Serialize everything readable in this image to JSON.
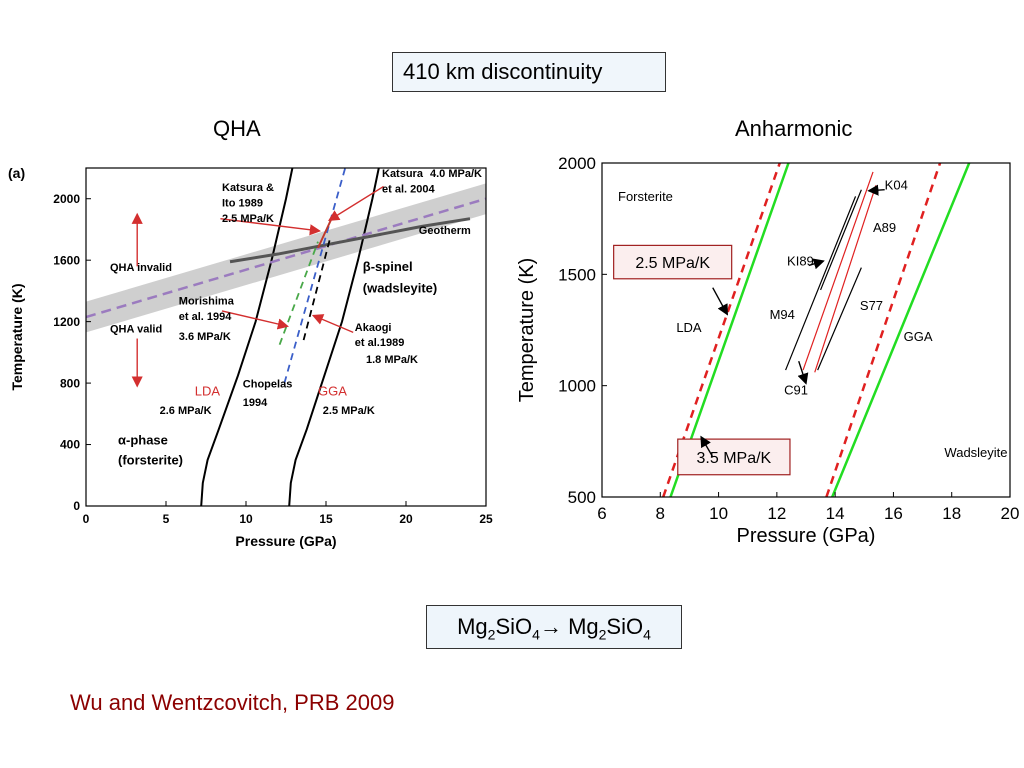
{
  "header": {
    "title": "410 km discontinuity"
  },
  "formula": {
    "reactant": "Mg",
    "r_sub1": "2",
    "r_mid": "SiO",
    "r_sub2": "4",
    "arrow": "→",
    "product": "Mg",
    "p_sub1": "2",
    "p_mid": "SiO",
    "p_sub2": "4"
  },
  "citation": "Wu and Wentzcovitch, PRB 2009",
  "chart_data": [
    {
      "type": "line",
      "panel_title": "QHA",
      "panel_label": "(a)",
      "xlabel": "Pressure (GPa)",
      "ylabel": "Temperature (K)",
      "xlim": [
        0,
        25
      ],
      "ylim": [
        0,
        2200
      ],
      "xticks": [
        0,
        5,
        10,
        15,
        20,
        25
      ],
      "yticks": [
        0,
        400,
        800,
        1200,
        1600,
        2000
      ],
      "series": [
        {
          "key": "lda",
          "color": "#000000",
          "width": 2,
          "dash": "",
          "points": [
            [
              7.2,
              0
            ],
            [
              7.3,
              150
            ],
            [
              7.6,
              300
            ],
            [
              8.3,
              500
            ],
            [
              9.5,
              850
            ],
            [
              10.6,
              1200
            ],
            [
              11.6,
              1600
            ],
            [
              12.5,
              2000
            ],
            [
              12.9,
              2200
            ]
          ]
        },
        {
          "key": "gga",
          "color": "#000000",
          "width": 2,
          "dash": "",
          "points": [
            [
              12.7,
              0
            ],
            [
              12.8,
              150
            ],
            [
              13.1,
              300
            ],
            [
              13.8,
              500
            ],
            [
              14.9,
              850
            ],
            [
              16.0,
              1200
            ],
            [
              17.0,
              1600
            ],
            [
              17.9,
              2000
            ],
            [
              18.3,
              2200
            ]
          ]
        },
        {
          "key": "qha-boundary",
          "color": "#9b7bbf",
          "width": 2.5,
          "dash": "10,6",
          "points": [
            [
              0,
              1230
            ],
            [
              25,
              2000
            ]
          ]
        },
        {
          "key": "geotherm",
          "color": "#555555",
          "width": 3,
          "dash": "",
          "points": [
            [
              9,
              1590
            ],
            [
              12,
              1640
            ],
            [
              15,
              1700
            ],
            [
              18,
              1760
            ],
            [
              21,
              1820
            ],
            [
              24,
              1870
            ]
          ]
        },
        {
          "key": "chopelas",
          "color": "#3b5fc9",
          "width": 1.8,
          "dash": "7,5",
          "points": [
            [
              12.4,
              800
            ],
            [
              16.2,
              2200
            ]
          ]
        },
        {
          "key": "morishima",
          "color": "#49a849",
          "width": 1.8,
          "dash": "7,5",
          "points": [
            [
              12.1,
              1050
            ],
            [
              14.5,
              1720
            ]
          ]
        },
        {
          "key": "akaogi",
          "color": "#000000",
          "width": 1.8,
          "dash": "7,5",
          "points": [
            [
              13.6,
              1080
            ],
            [
              15.3,
              1760
            ]
          ]
        },
        {
          "key": "katsura-2004",
          "color": "#c0392b",
          "width": 2,
          "dash": "",
          "points": [
            [
              14.5,
              1680
            ],
            [
              15.3,
              1860
            ]
          ]
        }
      ],
      "band": {
        "lower": [
          [
            0,
            1130
          ],
          [
            25,
            1900
          ]
        ],
        "upper": [
          [
            0,
            1330
          ],
          [
            25,
            2100
          ]
        ],
        "color": "#cfcfcf"
      },
      "annotations": [
        {
          "text": "Katsura &",
          "bold": true,
          "x": 8.5,
          "y": 2050,
          "size": 11
        },
        {
          "text": "Ito 1989",
          "bold": true,
          "x": 8.5,
          "y": 1950,
          "size": 11
        },
        {
          "text": "2.5 MPa/K",
          "bold": true,
          "x": 8.5,
          "y": 1850,
          "size": 11
        },
        {
          "text": "Katsura",
          "bold": true,
          "x": 18.5,
          "y": 2140,
          "size": 11
        },
        {
          "text": "4.0 MPa/K",
          "bold": true,
          "x": 21.5,
          "y": 2140,
          "size": 11
        },
        {
          "text": "et al. 2004",
          "bold": true,
          "x": 18.5,
          "y": 2040,
          "size": 11
        },
        {
          "text": "Geotherm",
          "bold": true,
          "x": 20.8,
          "y": 1770,
          "size": 11
        },
        {
          "text": "QHA invalid",
          "bold": true,
          "x": 1.5,
          "y": 1530,
          "size": 11
        },
        {
          "text": "β-spinel",
          "bold": true,
          "x": 17.3,
          "y": 1530,
          "size": 13
        },
        {
          "text": "(wadsleyite)",
          "bold": true,
          "x": 17.3,
          "y": 1390,
          "size": 13
        },
        {
          "text": "Morishima",
          "bold": true,
          "x": 5.8,
          "y": 1310,
          "size": 11
        },
        {
          "text": "et al. 1994",
          "bold": true,
          "x": 5.8,
          "y": 1210,
          "size": 11
        },
        {
          "text": "3.6 MPa/K",
          "bold": true,
          "x": 5.8,
          "y": 1080,
          "size": 11
        },
        {
          "text": "QHA valid",
          "bold": true,
          "x": 1.5,
          "y": 1130,
          "size": 11
        },
        {
          "text": "Akaogi",
          "bold": true,
          "x": 16.8,
          "y": 1140,
          "size": 11
        },
        {
          "text": "et al.1989",
          "bold": true,
          "x": 16.8,
          "y": 1040,
          "size": 11
        },
        {
          "text": "1.8 MPa/K",
          "bold": true,
          "x": 17.5,
          "y": 930,
          "size": 11
        },
        {
          "text": "LDA",
          "bold": false,
          "x": 6.8,
          "y": 720,
          "size": 13,
          "color": "#d32f2f"
        },
        {
          "text": "Chopelas",
          "bold": true,
          "x": 9.8,
          "y": 770,
          "size": 11
        },
        {
          "text": "1994",
          "bold": true,
          "x": 9.8,
          "y": 650,
          "size": 11
        },
        {
          "text": "GGA",
          "bold": false,
          "x": 14.5,
          "y": 720,
          "size": 13,
          "color": "#d32f2f"
        },
        {
          "text": "2.6 MPa/K",
          "bold": true,
          "x": 4.6,
          "y": 600,
          "size": 11
        },
        {
          "text": "2.5 MPa/K",
          "bold": true,
          "x": 14.8,
          "y": 600,
          "size": 11
        },
        {
          "text": "α-phase",
          "bold": true,
          "x": 2.0,
          "y": 400,
          "size": 13
        },
        {
          "text": "(forsterite)",
          "bold": true,
          "x": 2.0,
          "y": 270,
          "size": 13
        }
      ],
      "arrows": [
        {
          "from": [
            8.4,
            1870
          ],
          "to": [
            14.6,
            1790
          ],
          "color": "#d32f2f"
        },
        {
          "from": [
            18.6,
            2080
          ],
          "to": [
            15.2,
            1860
          ],
          "color": "#d32f2f"
        },
        {
          "from": [
            8.5,
            1270
          ],
          "to": [
            12.6,
            1170
          ],
          "color": "#d32f2f"
        },
        {
          "from": [
            16.7,
            1130
          ],
          "to": [
            14.2,
            1240
          ],
          "color": "#d32f2f"
        },
        {
          "from": [
            3.2,
            1560
          ],
          "to": [
            3.2,
            1900
          ],
          "color": "#d32f2f"
        },
        {
          "from": [
            3.2,
            1090
          ],
          "to": [
            3.2,
            780
          ],
          "color": "#d32f2f"
        }
      ]
    },
    {
      "type": "line",
      "panel_title": "Anharmonic",
      "xlabel": "Pressure (GPa)",
      "ylabel": "Temperature (K)",
      "xlim": [
        6,
        20
      ],
      "ylim": [
        500,
        2000
      ],
      "xticks": [
        6,
        8,
        10,
        12,
        14,
        16,
        18,
        20
      ],
      "yticks": [
        500,
        1000,
        1500,
        2000
      ],
      "series": [
        {
          "key": "lda-static-dash",
          "color": "#e02020",
          "width": 2.5,
          "dash": "8,6",
          "points": [
            [
              8.1,
              500
            ],
            [
              12.1,
              2000
            ]
          ]
        },
        {
          "key": "lda-green",
          "color": "#22dd22",
          "width": 2.5,
          "dash": "",
          "points": [
            [
              8.35,
              500
            ],
            [
              12.4,
              2000
            ]
          ]
        },
        {
          "key": "gga-static-dash",
          "color": "#e02020",
          "width": 2.5,
          "dash": "8,6",
          "points": [
            [
              13.7,
              500
            ],
            [
              17.6,
              2000
            ]
          ]
        },
        {
          "key": "gga-green",
          "color": "#22dd22",
          "width": 2.5,
          "dash": "",
          "points": [
            [
              13.9,
              500
            ],
            [
              18.6,
              2000
            ]
          ]
        },
        {
          "key": "m94",
          "color": "#000000",
          "width": 1.2,
          "dash": "",
          "points": [
            [
              12.3,
              1070
            ],
            [
              14.7,
              1850
            ]
          ]
        },
        {
          "key": "ki89",
          "color": "#000000",
          "width": 1.2,
          "dash": "",
          "points": [
            [
              13.5,
              1430
            ],
            [
              14.9,
              1880
            ]
          ]
        },
        {
          "key": "s77",
          "color": "#000000",
          "width": 1.2,
          "dash": "",
          "points": [
            [
              13.4,
              1070
            ],
            [
              14.9,
              1530
            ]
          ]
        },
        {
          "key": "c91",
          "color": "#e02020",
          "width": 1.2,
          "dash": "",
          "points": [
            [
              12.9,
              1070
            ],
            [
              15.3,
              1960
            ]
          ]
        },
        {
          "key": "a89",
          "color": "#e02020",
          "width": 1.2,
          "dash": "",
          "points": [
            [
              13.3,
              1060
            ],
            [
              15.4,
              1900
            ]
          ]
        }
      ],
      "annotations": [
        {
          "text": "Forsterite",
          "x": 6.55,
          "y": 1830,
          "size": 13
        },
        {
          "text": "K04",
          "x": 15.7,
          "y": 1880,
          "size": 13
        },
        {
          "text": "A89",
          "x": 15.3,
          "y": 1690,
          "size": 13
        },
        {
          "text": "KI89",
          "x": 12.35,
          "y": 1540,
          "size": 13
        },
        {
          "text": "M94",
          "x": 11.75,
          "y": 1300,
          "size": 13
        },
        {
          "text": "S77",
          "x": 14.85,
          "y": 1340,
          "size": 13
        },
        {
          "text": "LDA",
          "x": 8.55,
          "y": 1240,
          "size": 13
        },
        {
          "text": "GGA",
          "x": 16.35,
          "y": 1200,
          "size": 13
        },
        {
          "text": "C91",
          "x": 12.25,
          "y": 960,
          "size": 13
        },
        {
          "text": "Wadsleyite",
          "x": 17.75,
          "y": 680,
          "size": 13
        }
      ],
      "boxes": [
        {
          "text": "2.5 MPa/K",
          "x0": 6.4,
          "x1": 10.45,
          "yTop": 1630,
          "yBot": 1480
        },
        {
          "text": "3.5 MPa/K",
          "x0": 8.6,
          "x1": 12.45,
          "yTop": 760,
          "yBot": 600
        }
      ],
      "arrows": [
        {
          "from": [
            15.7,
            1880
          ],
          "to": [
            15.15,
            1875
          ],
          "color": "#000000"
        },
        {
          "from": [
            9.8,
            1440
          ],
          "to": [
            10.3,
            1320
          ],
          "color": "#000000"
        },
        {
          "from": [
            9.8,
            680
          ],
          "to": [
            9.4,
            770
          ],
          "color": "#000000"
        },
        {
          "from": [
            12.75,
            1110
          ],
          "to": [
            13.0,
            1010
          ],
          "color": "#000000"
        },
        {
          "from": [
            13.1,
            1540
          ],
          "to": [
            13.6,
            1560
          ],
          "color": "#000000"
        }
      ]
    }
  ]
}
